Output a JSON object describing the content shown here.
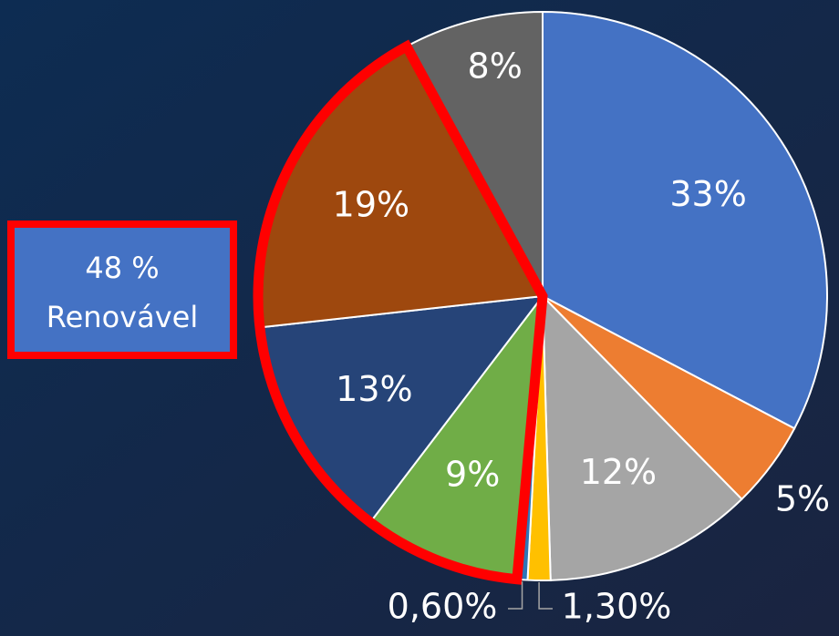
{
  "chart_data": {
    "type": "pie",
    "categories": [
      null,
      null,
      null,
      null,
      null,
      null,
      null,
      null,
      null
    ],
    "values": [
      33,
      5,
      12,
      1.3,
      0.6,
      9,
      13,
      19,
      8
    ],
    "value_labels": [
      "33%",
      "5%",
      "12%",
      "1,30%",
      "0,60%",
      "9%",
      "13%",
      "19%",
      "8%"
    ],
    "colors": [
      "#4472c4",
      "#ed7d31",
      "#a5a5a5",
      "#ffc000",
      "#2e75b6",
      "#70ad47",
      "#264478",
      "#9e480e",
      "#636363"
    ],
    "annotation": [
      "48 %",
      "Renovável"
    ]
  }
}
